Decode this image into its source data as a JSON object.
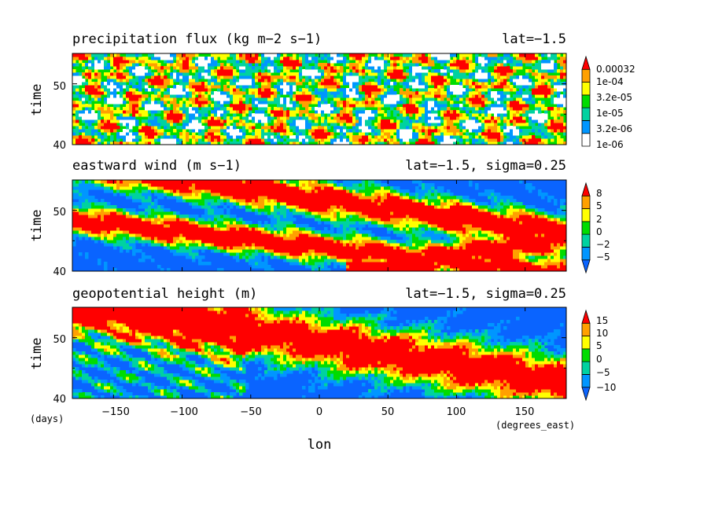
{
  "chart_data": [
    {
      "type": "heatmap",
      "title": "precipitation flux (kg m−2 s−1)",
      "subtitle": "lat=−1.5",
      "ylabel": "time",
      "xlim": [
        -180,
        180
      ],
      "ylim": [
        40,
        55
      ],
      "yticks": [
        "40",
        "50"
      ],
      "colorbar_labels": [
        "1e-06",
        "3.2e-06",
        "1e-05",
        "3.2e-05",
        "1e-04",
        "0.00032"
      ],
      "colorbar_colors": [
        "#ffffff",
        "#0096ff",
        "#00d2a0",
        "#00dc00",
        "#ffff00",
        "#ffa000",
        "#ff0000"
      ],
      "field": {
        "bias": 0.35,
        "dominant": null
      }
    },
    {
      "type": "heatmap",
      "title": "eastward wind (m s−1)",
      "subtitle": "lat=−1.5, sigma=0.25",
      "ylabel": "time",
      "xlim": [
        -180,
        180
      ],
      "ylim": [
        40,
        55
      ],
      "yticks": [
        "40",
        "50"
      ],
      "colorbar_labels": [
        "−5",
        "−2",
        "0",
        "2",
        "5",
        "8"
      ],
      "colorbar_colors": [
        "#0a64ff",
        "#0096ff",
        "#00d2a0",
        "#00dc00",
        "#ffff00",
        "#ffa000",
        "#ff0000"
      ],
      "field": {
        "bias": -0.15,
        "dominant": "low"
      }
    },
    {
      "type": "heatmap",
      "title": "geopotential height (m)",
      "subtitle": "lat=−1.5, sigma=0.25",
      "ylabel": "time",
      "xlabel": "lon",
      "xlim": [
        -180,
        180
      ],
      "ylim": [
        40,
        55
      ],
      "yticks": [
        "40",
        "50"
      ],
      "xticks": [
        "−150",
        "−100",
        "−50",
        "0",
        "50",
        "100",
        "150"
      ],
      "y_units": "(days)",
      "x_units": "(degrees_east)",
      "colorbar_labels": [
        "−10",
        "−5",
        "0",
        "5",
        "10",
        "15"
      ],
      "colorbar_colors": [
        "#0a64ff",
        "#0096ff",
        "#00d2a0",
        "#00dc00",
        "#ffff00",
        "#ffa000",
        "#ff0000"
      ],
      "field": {
        "bias": 0.0,
        "dominant": "band"
      }
    }
  ]
}
